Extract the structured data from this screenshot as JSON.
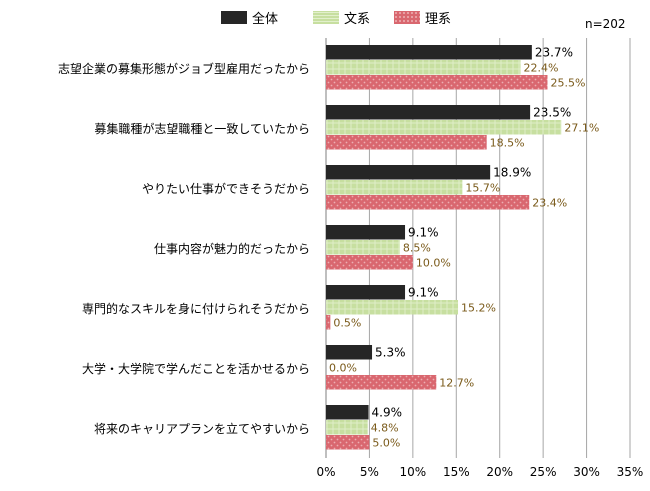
{
  "colors": {
    "全体": "#262626",
    "文系": "#c2dc9a",
    "理系": "#d96a72",
    "grid": "#a6a6a6",
    "value_label_dark": "#000000",
    "value_label_accent": "#7a5a1a"
  },
  "note": "n=202",
  "chart_data": {
    "type": "bar",
    "orientation": "horizontal",
    "categories": [
      "志望企業の募集形態がジョブ型雇用だったから",
      "募集職種が志望職種と一致していたから",
      "やりたい仕事ができそうだから",
      "仕事内容が魅力的だったから",
      "専門的なスキルを身に付けられそうだから",
      "大学・大学院で学んだことを活かせるから",
      "将来のキャリアプランを立てやすいから"
    ],
    "series": [
      {
        "name": "全体",
        "values": [
          23.7,
          23.5,
          18.9,
          9.1,
          9.1,
          5.3,
          4.9
        ],
        "labels": [
          "23.7%",
          "23.5%",
          "18.9%",
          "9.1%",
          "9.1%",
          "5.3%",
          "4.9%"
        ]
      },
      {
        "name": "文系",
        "values": [
          22.4,
          27.1,
          15.7,
          8.5,
          15.2,
          0.0,
          4.8
        ],
        "labels": [
          "22.4%",
          "27.1%",
          "15.7%",
          "8.5%",
          "15.2%",
          "0.0%",
          "4.8%"
        ]
      },
      {
        "name": "理系",
        "values": [
          25.5,
          18.5,
          23.4,
          10.0,
          0.5,
          12.7,
          5.0
        ],
        "labels": [
          "25.5%",
          "18.5%",
          "23.4%",
          "10.0%",
          "0.5%",
          "12.7%",
          "5.0%"
        ]
      }
    ],
    "xlim": [
      0,
      35
    ],
    "xticks": [
      "0%",
      "5%",
      "10%",
      "15%",
      "20%",
      "25%",
      "30%",
      "35%"
    ],
    "grid": true,
    "legend": "top-center"
  }
}
